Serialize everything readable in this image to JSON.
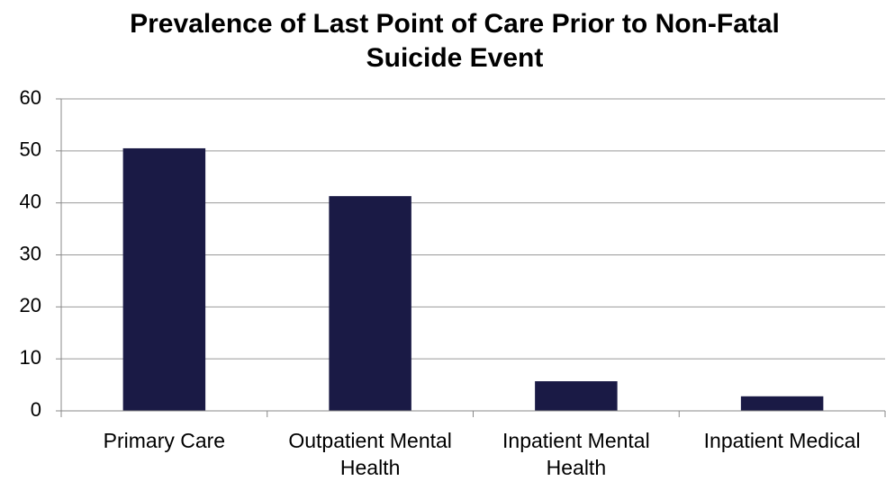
{
  "chart_data": {
    "type": "bar",
    "title": "Prevalence of Last Point of Care Prior to Non-Fatal Suicide Event",
    "categories": [
      "Primary Care",
      "Outpatient Mental Health",
      "Inpatient Mental Health",
      "Inpatient Medical"
    ],
    "values": [
      50.5,
      41.3,
      5.7,
      2.8
    ],
    "color": "#1a1a45",
    "ylim": [
      0,
      60
    ],
    "yticks": [
      0,
      10,
      20,
      30,
      40,
      50,
      60
    ],
    "grid": true
  }
}
